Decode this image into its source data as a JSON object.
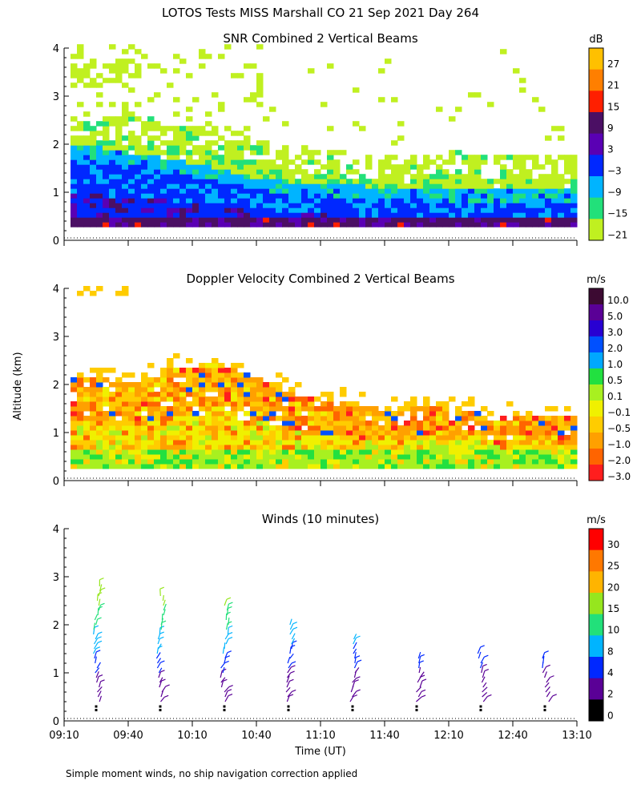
{
  "figure": {
    "title": "LOTOS Tests MISS Marshall CO  21 Sep 2021 Day 264",
    "ylabel": "Altitude (km)",
    "xlabel": "Time (UT)",
    "footnote": "Simple moment winds, no ship navigation correction applied"
  },
  "chart_data": [
    {
      "type": "heatmap",
      "title": "SNR Combined 2 Vertical Beams",
      "ylim": [
        0,
        4
      ],
      "yticks": [
        "0",
        "1",
        "2",
        "3",
        "4"
      ],
      "xlim": [
        "09:10",
        "13:10"
      ],
      "colorbar": {
        "unit": "dB",
        "labels": [
          "27",
          "21",
          "15",
          "9",
          "3",
          "−3",
          "−9",
          "−15",
          "−21"
        ],
        "colors": [
          "#ffc000",
          "#ff7f00",
          "#ff1f00",
          "#4b0f64",
          "#5a00b4",
          "#0028ff",
          "#00b4ff",
          "#22e07a",
          "#c0f020"
        ]
      },
      "profile": [
        {
          "time": "09:20",
          "top_km": 2.2,
          "blue_top_km": 1.7
        },
        {
          "time": "09:40",
          "top_km": 2.3,
          "blue_top_km": 1.5
        },
        {
          "time": "10:00",
          "top_km": 2.1,
          "blue_top_km": 1.4
        },
        {
          "time": "10:20",
          "top_km": 2.0,
          "blue_top_km": 1.2
        },
        {
          "time": "10:40",
          "top_km": 1.8,
          "blue_top_km": 1.0
        },
        {
          "time": "11:00",
          "top_km": 1.6,
          "blue_top_km": 0.9
        },
        {
          "time": "11:20",
          "top_km": 1.5,
          "blue_top_km": 0.85
        },
        {
          "time": "11:40",
          "top_km": 1.4,
          "blue_top_km": 0.8
        },
        {
          "time": "12:00",
          "top_km": 1.5,
          "blue_top_km": 0.8
        },
        {
          "time": "12:20",
          "top_km": 1.5,
          "blue_top_km": 0.75
        },
        {
          "time": "12:40",
          "top_km": 1.4,
          "blue_top_km": 0.75
        },
        {
          "time": "13:00",
          "top_km": 1.4,
          "blue_top_km": 0.75
        }
      ]
    },
    {
      "type": "heatmap",
      "title": "Doppler Velocity Combined 2 Vertical Beams",
      "ylim": [
        0,
        4
      ],
      "yticks": [
        "0",
        "1",
        "2",
        "3",
        "4"
      ],
      "xlim": [
        "09:10",
        "13:10"
      ],
      "colorbar": {
        "unit": "m/s",
        "labels": [
          "10.0",
          "5.0",
          "3.0",
          "2.0",
          "1.0",
          "0.5",
          "0.1",
          "−0.1",
          "−0.5",
          "−1.0",
          "−2.0",
          "−3.0"
        ],
        "colors": [
          "#3c0a32",
          "#5a0096",
          "#2800d2",
          "#0050ff",
          "#00a8ff",
          "#22e040",
          "#a8f020",
          "#f0f000",
          "#ffcc00",
          "#ffa000",
          "#ff6400",
          "#ff1e1e"
        ]
      },
      "profile": [
        {
          "time": "09:20",
          "top_km": 2.1
        },
        {
          "time": "09:40",
          "top_km": 2.0
        },
        {
          "time": "10:00",
          "top_km": 2.3
        },
        {
          "time": "10:20",
          "top_km": 2.4
        },
        {
          "time": "10:40",
          "top_km": 2.1
        },
        {
          "time": "11:00",
          "top_km": 1.7
        },
        {
          "time": "11:20",
          "top_km": 1.6
        },
        {
          "time": "11:40",
          "top_km": 1.4
        },
        {
          "time": "12:00",
          "top_km": 1.5
        },
        {
          "time": "12:20",
          "top_km": 1.4
        },
        {
          "time": "12:40",
          "top_km": 1.3
        },
        {
          "time": "13:00",
          "top_km": 1.3
        }
      ]
    },
    {
      "type": "scatter",
      "title": "Winds (10 minutes)",
      "ylim": [
        0,
        4
      ],
      "yticks": [
        "0",
        "1",
        "2",
        "3",
        "4"
      ],
      "xlim": [
        "09:10",
        "13:10"
      ],
      "xticks": [
        "09:10",
        "09:40",
        "10:10",
        "10:40",
        "11:10",
        "11:40",
        "12:10",
        "12:40",
        "13:10"
      ],
      "colorbar": {
        "unit": "m/s",
        "labels": [
          "30",
          "25",
          "20",
          "15",
          "10",
          "8",
          "4",
          "2",
          "0"
        ],
        "colors": [
          "#ff0000",
          "#ff7800",
          "#ffb400",
          "#96e61e",
          "#22e07a",
          "#00b4ff",
          "#0028ff",
          "#5a0096",
          "#000000"
        ]
      },
      "profiles": [
        {
          "time": "09:25",
          "top_km": 2.85,
          "base_km": 0.3
        },
        {
          "time": "09:55",
          "top_km": 2.65,
          "base_km": 0.3
        },
        {
          "time": "10:25",
          "top_km": 2.45,
          "base_km": 0.3
        },
        {
          "time": "10:55",
          "top_km": 2.05,
          "base_km": 0.3
        },
        {
          "time": "11:25",
          "top_km": 1.75,
          "base_km": 0.3
        },
        {
          "time": "11:55",
          "top_km": 1.35,
          "base_km": 0.3
        },
        {
          "time": "12:25",
          "top_km": 1.45,
          "base_km": 0.3
        },
        {
          "time": "12:55",
          "top_km": 1.35,
          "base_km": 0.3
        }
      ]
    }
  ]
}
